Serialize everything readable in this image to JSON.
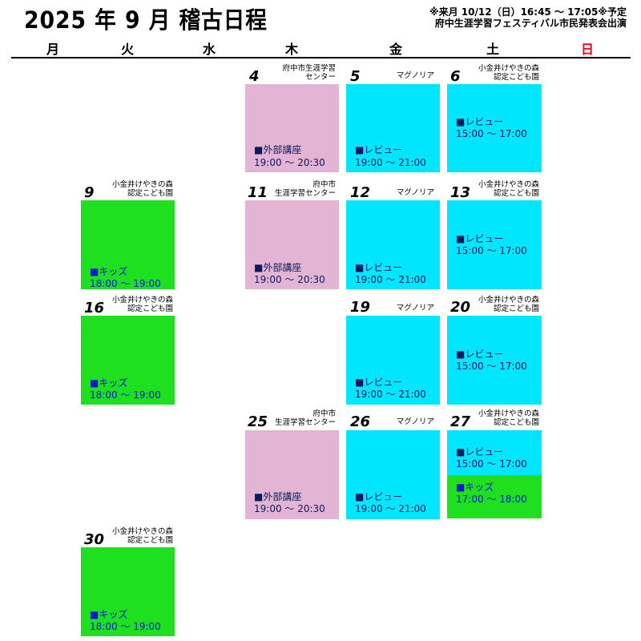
{
  "header": {
    "title": "2025 年 9 月  稽古日程",
    "note_line1": "※来月 10/12（日）16:45 ～ 17:05※予定",
    "note_line2": "府中生涯学習フェスティバル市民発表会出演"
  },
  "weekdays": [
    "月",
    "火",
    "水",
    "木",
    "金",
    "土",
    "日"
  ],
  "colors": {
    "sunday": "#e8001c",
    "external_course": "#e4b4d4",
    "review": "#00e6ff",
    "kids": "#1ee01e"
  },
  "days": {
    "d4": {
      "num": "4",
      "venue_1": "府中市生涯学習",
      "venue_2": "センター"
    },
    "d5": {
      "num": "5",
      "venue_1": "マグノリア"
    },
    "d6": {
      "num": "6",
      "venue_1": "小金井けやきの森",
      "venue_2": "認定こども園"
    },
    "d9": {
      "num": "9",
      "venue_1": "小金井けやきの森",
      "venue_2": "認定こども園"
    },
    "d11": {
      "num": "11",
      "venue_1": "府中市",
      "venue_2": "生涯学習センター"
    },
    "d12": {
      "num": "12",
      "venue_1": "マグノリア"
    },
    "d13": {
      "num": "13",
      "venue_1": "小金井けやきの森",
      "venue_2": "認定こども園"
    },
    "d16": {
      "num": "16",
      "venue_1": "小金井けやきの森",
      "venue_2": "認定こども園"
    },
    "d19": {
      "num": "19",
      "venue_1": "マグノリア"
    },
    "d20": {
      "num": "20",
      "venue_1": "小金井けやきの森",
      "venue_2": "認定こども園"
    },
    "d25": {
      "num": "25",
      "venue_1": "府中市",
      "venue_2": "生涯学習センター"
    },
    "d26": {
      "num": "26",
      "venue_1": "マグノリア"
    },
    "d27": {
      "num": "27",
      "venue_1": "小金井けやきの森",
      "venue_2": "認定こども園"
    },
    "d30": {
      "num": "30",
      "venue_1": "小金井けやきの森",
      "venue_2": "認定こども園"
    }
  },
  "events": {
    "e4": {
      "title": "■外部講座",
      "time": "19:00 ～ 20:30"
    },
    "e5": {
      "title": "■レビュー",
      "time": "19:00 ～ 21:00"
    },
    "e6": {
      "title": "■レビュー",
      "time": "15:00 ～ 17:00"
    },
    "e9": {
      "title": "■キッズ",
      "time": "18:00 ～ 19:00"
    },
    "e11": {
      "title": "■外部講座",
      "time": "19:00 ～ 20:30"
    },
    "e12": {
      "title": "■レビュー",
      "time": "19:00 ～ 21:00"
    },
    "e13": {
      "title": "■レビュー",
      "time": "15:00 ～ 17:00"
    },
    "e16": {
      "title": "■キッズ",
      "time": "18:00 ～ 19:00"
    },
    "e19": {
      "title": "■レビュー",
      "time": "19:00 ～ 21:00"
    },
    "e20": {
      "title": "■レビュー",
      "time": "15:00 ～ 17:00"
    },
    "e25": {
      "title": "■外部講座",
      "time": "19:00 ～ 20:30"
    },
    "e26": {
      "title": "■レビュー",
      "time": "19:00 ～ 21:00"
    },
    "e27a": {
      "title": "■レビュー",
      "time": "15:00 ～ 17:00"
    },
    "e27b": {
      "title": "■キッズ",
      "time": "17:00 ～ 18:00"
    },
    "e30": {
      "title": "■キッズ",
      "time": "18:00 ～ 19:00"
    }
  }
}
